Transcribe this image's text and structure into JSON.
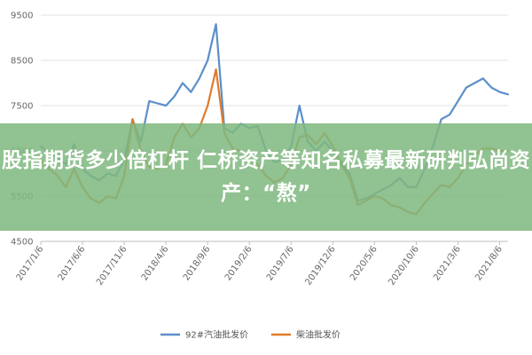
{
  "banner": {
    "title": "股指期货多少倍杠杆 仁桥资产等知名私募最新研判弘尚资产：“熬”"
  },
  "chart_data": {
    "type": "line",
    "title": "",
    "xlabel": "",
    "ylabel": "",
    "ylim": [
      4500,
      9500
    ],
    "yticks": [
      4500,
      5500,
      6500,
      7500,
      8500,
      9500
    ],
    "xrange": [
      0,
      56
    ],
    "xticks": [
      {
        "i": 0,
        "label": "2017/1/6"
      },
      {
        "i": 5,
        "label": "2017/6/6"
      },
      {
        "i": 10,
        "label": "2017/11/6"
      },
      {
        "i": 15,
        "label": "2018/4/6"
      },
      {
        "i": 20,
        "label": "2018/9/6"
      },
      {
        "i": 25,
        "label": "2019/2/6"
      },
      {
        "i": 30,
        "label": "2019/7/6"
      },
      {
        "i": 35,
        "label": "2019/12/6"
      },
      {
        "i": 40,
        "label": "2020/5/6"
      },
      {
        "i": 45,
        "label": "2020/10/6"
      },
      {
        "i": 50,
        "label": "2021/3/6"
      },
      {
        "i": 55,
        "label": "2021/8/6"
      }
    ],
    "grid": true,
    "legend_position": "bottom",
    "series": [
      {
        "name": "92#汽油批发价",
        "color": "#5b8fc9",
        "values": [
          6600,
          6450,
          6350,
          6200,
          6650,
          6100,
          5950,
          5850,
          6000,
          5950,
          6300,
          7200,
          6700,
          7600,
          7550,
          7500,
          7700,
          8000,
          7800,
          8100,
          8500,
          9300,
          7000,
          6900,
          7100,
          7000,
          7050,
          6500,
          6250,
          6300,
          6600,
          7500,
          6700,
          6500,
          6700,
          6500,
          6250,
          6000,
          5400,
          5450,
          5550,
          5650,
          5750,
          5900,
          5700,
          5700,
          6100,
          6600,
          7200,
          7300,
          7600,
          7900,
          8000,
          8100,
          7900,
          7800,
          7750
        ]
      },
      {
        "name": "柴油批发价",
        "color": "#e07b2a",
        "values": [
          6300,
          6100,
          5950,
          5700,
          6100,
          5700,
          5450,
          5350,
          5500,
          5450,
          5950,
          7200,
          6500,
          6150,
          6100,
          6200,
          6800,
          7100,
          6800,
          7000,
          7500,
          8300,
          6900,
          6550,
          6500,
          6300,
          6200,
          5950,
          5800,
          5900,
          6200,
          6800,
          6850,
          6650,
          6900,
          6600,
          6200,
          5900,
          5300,
          5400,
          5500,
          5450,
          5300,
          5250,
          5150,
          5100,
          5350,
          5550,
          5750,
          5700,
          5900,
          6200,
          6400,
          6550,
          6550,
          6500,
          6500
        ]
      }
    ]
  }
}
